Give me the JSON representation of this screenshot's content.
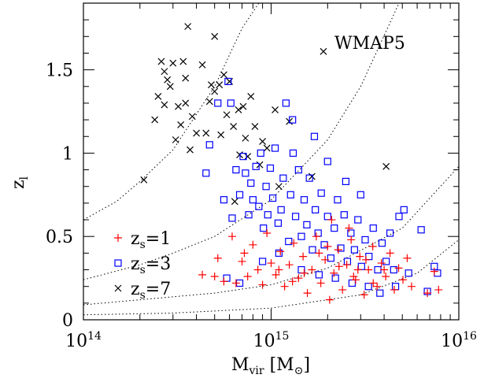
{
  "chart_data": {
    "type": "scatter",
    "panel_label": "WMAP5",
    "x_axis": {
      "label_main": "M",
      "label_sub": "vir",
      "label_unit_open": " [M",
      "label_unit_close": "]",
      "scale": "log",
      "range": [
        100000000000000,
        10000000000000000
      ],
      "ticks": [
        {
          "value": 100000000000000,
          "base": "10",
          "exp": "14"
        },
        {
          "value": 1000000000000000,
          "base": "10",
          "exp": "15"
        },
        {
          "value": 10000000000000000,
          "base": "10",
          "exp": "16"
        }
      ]
    },
    "y_axis": {
      "label_main": "z",
      "label_sub": "l",
      "scale": "linear",
      "range": [
        0,
        1.9
      ],
      "ticks": [
        {
          "value": 0,
          "label": "0"
        },
        {
          "value": 0.5,
          "label": "0.5"
        },
        {
          "value": 1,
          "label": "1"
        },
        {
          "value": 1.5,
          "label": "1.5"
        }
      ]
    },
    "legend": {
      "placement": "bottom-left",
      "entries": [
        {
          "series": "zs1",
          "prefix": "z",
          "sub": "s",
          "suffix": "=1"
        },
        {
          "series": "zs3",
          "prefix": "z",
          "sub": "s",
          "suffix": "=3"
        },
        {
          "series": "zs7",
          "prefix": "z",
          "sub": "s",
          "suffix": "=7"
        }
      ]
    },
    "series": [
      {
        "id": "zs7",
        "marker": "cross",
        "color": "#000000",
        "points": [
          [
            210000000000000.0,
            0.84
          ],
          [
            240000000000000.0,
            1.2
          ],
          [
            250000000000000.0,
            1.34
          ],
          [
            260000000000000.0,
            1.55
          ],
          [
            270000000000000.0,
            1.49
          ],
          [
            280000000000000.0,
            1.44
          ],
          [
            270000000000000.0,
            1.29
          ],
          [
            290000000000000.0,
            1.4
          ],
          [
            300000000000000.0,
            1.54
          ],
          [
            310000000000000.0,
            1.08
          ],
          [
            320000000000000.0,
            1.28
          ],
          [
            330000000000000.0,
            1.17
          ],
          [
            350000000000000.0,
            1.3
          ],
          [
            340000000000000.0,
            1.55
          ],
          [
            360000000000000.0,
            1.76
          ],
          [
            350000000000000.0,
            1.45
          ],
          [
            370000000000000.0,
            1.02
          ],
          [
            380000000000000.0,
            1.22
          ],
          [
            400000000000000.0,
            1.12
          ],
          [
            430000000000000.0,
            1.53
          ],
          [
            450000000000000.0,
            1.12
          ],
          [
            470000000000000.0,
            1.31
          ],
          [
            480000000000000.0,
            1.41
          ],
          [
            500000000000000.0,
            1.7
          ],
          [
            500000000000000.0,
            1.37
          ],
          [
            530000000000000.0,
            1.41
          ],
          [
            540000000000000.0,
            1.11
          ],
          [
            560000000000000.0,
            1.47
          ],
          [
            580000000000000.0,
            1.23
          ],
          [
            600000000000000.0,
            1.43
          ],
          [
            630000000000000.0,
            1.16
          ],
          [
            670000000000000.0,
            1.26
          ],
          [
            680000000000000.0,
            0.99
          ],
          [
            710000000000000.0,
            1.28
          ],
          [
            730000000000000.0,
            1.09
          ],
          [
            780000000000000.0,
            1.34
          ],
          [
            820000000000000.0,
            1.16
          ],
          [
            870000000000000.0,
            0.93
          ],
          [
            900000000000000.0,
            1.07
          ],
          [
            1050000000000000.0,
            1.26
          ],
          [
            1250000000000000.0,
            1.19
          ],
          [
            1900000000000000.0,
            1.61
          ],
          [
            1650000000000000.0,
            0.86
          ],
          [
            4100000000000000.0,
            0.92
          ],
          [
            640000000000000.0,
            0.71
          ],
          [
            950000000000000.0,
            1.03
          ],
          [
            750000000000000.0,
            0.98
          ],
          [
            1100000000000000.0,
            0.8
          ]
        ]
      },
      {
        "id": "zs3",
        "marker": "square",
        "color": "#0000ff",
        "points": [
          [
            450000000000000.0,
            0.88
          ],
          [
            470000000000000.0,
            1.05
          ],
          [
            520000000000000.0,
            1.3
          ],
          [
            560000000000000.0,
            0.72
          ],
          [
            590000000000000.0,
            1.43
          ],
          [
            610000000000000.0,
            1.3
          ],
          [
            620000000000000.0,
            0.61
          ],
          [
            650000000000000.0,
            0.9
          ],
          [
            680000000000000.0,
            0.75
          ],
          [
            710000000000000.0,
            0.98
          ],
          [
            730000000000000.0,
            0.88
          ],
          [
            760000000000000.0,
            0.63
          ],
          [
            780000000000000.0,
            0.82
          ],
          [
            800000000000000.0,
            0.72
          ],
          [
            830000000000000.0,
            0.92
          ],
          [
            860000000000000.0,
            0.68
          ],
          [
            880000000000000.0,
            1.0
          ],
          [
            910000000000000.0,
            0.55
          ],
          [
            940000000000000.0,
            0.8
          ],
          [
            960000000000000.0,
            0.63
          ],
          [
            990000000000000.0,
            0.91
          ],
          [
            1020000000000000.0,
            0.73
          ],
          [
            1050000000000000.0,
            1.03
          ],
          [
            1090000000000000.0,
            0.58
          ],
          [
            1130000000000000.0,
            0.66
          ],
          [
            1160000000000000.0,
            0.85
          ],
          [
            1200000000000000.0,
            1.3
          ],
          [
            1240000000000000.0,
            0.47
          ],
          [
            1270000000000000.0,
            0.75
          ],
          [
            1310000000000000.0,
            1.0
          ],
          [
            1350000000000000.0,
            0.62
          ],
          [
            1400000000000000.0,
            0.9
          ],
          [
            1450000000000000.0,
            0.5
          ],
          [
            1500000000000000.0,
            0.72
          ],
          [
            1550000000000000.0,
            0.57
          ],
          [
            1600000000000000.0,
            0.85
          ],
          [
            1660000000000000.0,
            0.42
          ],
          [
            1720000000000000.0,
            0.66
          ],
          [
            1780000000000000.0,
            0.52
          ],
          [
            1850000000000000.0,
            0.76
          ],
          [
            1920000000000000.0,
            0.45
          ],
          [
            2000000000000000.0,
            0.62
          ],
          [
            2080000000000000.0,
            0.37
          ],
          [
            2170000000000000.0,
            0.55
          ],
          [
            2260000000000000.0,
            0.72
          ],
          [
            2350000000000000.0,
            0.43
          ],
          [
            2450000000000000.0,
            0.63
          ],
          [
            2550000000000000.0,
            0.35
          ],
          [
            2660000000000000.0,
            0.52
          ],
          [
            2780000000000000.0,
            0.42
          ],
          [
            2900000000000000.0,
            0.6
          ],
          [
            3030000000000000.0,
            0.32
          ],
          [
            3170000000000000.0,
            0.48
          ],
          [
            3320000000000000.0,
            0.38
          ],
          [
            3500000000000000.0,
            0.55
          ],
          [
            3700000000000000.0,
            0.3
          ],
          [
            3900000000000000.0,
            0.46
          ],
          [
            4100000000000000.0,
            0.35
          ],
          [
            4300000000000000.0,
            0.52
          ],
          [
            4500000000000000.0,
            0.3
          ],
          [
            4800000000000000.0,
            0.62
          ],
          [
            5100000000000000.0,
            0.66
          ],
          [
            5400000000000000.0,
            0.28
          ],
          [
            6300000000000000.0,
            0.54
          ],
          [
            6800000000000000.0,
            0.17
          ],
          [
            7400000000000000.0,
            0.32
          ],
          [
            7700000000000000.0,
            0.28
          ],
          [
            1450000000000000.0,
            0.3
          ],
          [
            1800000000000000.0,
            0.27
          ],
          [
            2200000000000000.0,
            0.25
          ],
          [
            2700000000000000.0,
            0.22
          ],
          [
            3300000000000000.0,
            0.2
          ],
          [
            3800000000000000.0,
            0.16
          ],
          [
            4600000000000000.0,
            0.2
          ],
          [
            1100000000000000.0,
            0.4
          ],
          [
            900000000000000.0,
            0.35
          ],
          [
            580000000000000.0,
            0.25
          ],
          [
            680000000000000.0,
            0.22
          ],
          [
            2000000000000000.0,
            0.95
          ],
          [
            2500000000000000.0,
            0.83
          ],
          [
            3000000000000000.0,
            0.75
          ],
          [
            1700000000000000.0,
            1.1
          ],
          [
            1300000000000000.0,
            1.2
          ]
        ]
      },
      {
        "id": "zs1",
        "marker": "plus",
        "color": "#ff0000",
        "points": [
          [
            430000000000000.0,
            0.27
          ],
          [
            520000000000000.0,
            0.37
          ],
          [
            560000000000000.0,
            0.23
          ],
          [
            620000000000000.0,
            0.5
          ],
          [
            650000000000000.0,
            0.22
          ],
          [
            700000000000000.0,
            0.35
          ],
          [
            750000000000000.0,
            0.26
          ],
          [
            800000000000000.0,
            0.45
          ],
          [
            850000000000000.0,
            0.3
          ],
          [
            900000000000000.0,
            0.21
          ],
          [
            950000000000000.0,
            0.52
          ],
          [
            1000000000000000.0,
            0.34
          ],
          [
            1060000000000000.0,
            0.27
          ],
          [
            1120000000000000.0,
            0.41
          ],
          [
            1180000000000000.0,
            0.2
          ],
          [
            1250000000000000.0,
            0.33
          ],
          [
            1320000000000000.0,
            0.46
          ],
          [
            1400000000000000.0,
            0.25
          ],
          [
            1480000000000000.0,
            0.38
          ],
          [
            1560000000000000.0,
            0.16
          ],
          [
            1650000000000000.0,
            0.3
          ],
          [
            1740000000000000.0,
            0.5
          ],
          [
            1840000000000000.0,
            0.22
          ],
          [
            1940000000000000.0,
            0.36
          ],
          [
            2050000000000000.0,
            0.12
          ],
          [
            2160000000000000.0,
            0.28
          ],
          [
            2280000000000000.0,
            0.42
          ],
          [
            2400000000000000.0,
            0.18
          ],
          [
            2530000000000000.0,
            0.33
          ],
          [
            2670000000000000.0,
            0.48
          ],
          [
            2820000000000000.0,
            0.24
          ],
          [
            2970000000000000.0,
            0.38
          ],
          [
            3130000000000000.0,
            0.15
          ],
          [
            3300000000000000.0,
            0.3
          ],
          [
            3480000000000000.0,
            0.44
          ],
          [
            3670000000000000.0,
            0.2
          ],
          [
            3870000000000000.0,
            0.34
          ],
          [
            4080000000000000.0,
            0.26
          ],
          [
            4300000000000000.0,
            0.4
          ],
          [
            4530000000000000.0,
            0.18
          ],
          [
            4780000000000000.0,
            0.31
          ],
          [
            5040000000000000.0,
            0.24
          ],
          [
            5310000000000000.0,
            0.37
          ],
          [
            5600000000000000.0,
            0.2
          ],
          [
            6800000000000000.0,
            0.16
          ],
          [
            7800000000000000.0,
            0.18
          ],
          [
            7400000000000000.0,
            0.29
          ],
          [
            2100000000000000.0,
            0.6
          ],
          [
            2600000000000000.0,
            0.55
          ],
          [
            1800000000000000.0,
            0.4
          ],
          [
            1500000000000000.0,
            0.28
          ],
          [
            3500000000000000.0,
            0.22
          ],
          [
            2900000000000000.0,
            0.3
          ],
          [
            2300000000000000.0,
            0.32
          ],
          [
            4000000000000000.0,
            0.3
          ],
          [
            1300000000000000.0,
            0.23
          ],
          [
            1100000000000000.0,
            0.3
          ],
          [
            500000000000000.0,
            0.26
          ],
          [
            720000000000000.0,
            0.4
          ],
          [
            2000000000000000.0,
            0.44
          ],
          [
            2750000000000000.0,
            0.26
          ],
          [
            3200000000000000.0,
            0.36
          ]
        ]
      }
    ],
    "reference_curves": [
      {
        "style": "dotted",
        "points": [
          [
            100000000000000.0,
            0.6
          ],
          [
            150000000000000.0,
            0.71
          ],
          [
            200000000000000.0,
            0.83
          ],
          [
            300000000000000.0,
            1.02
          ],
          [
            500000000000000.0,
            1.4
          ],
          [
            700000000000000.0,
            1.75
          ],
          [
            860000000000000.0,
            1.9
          ]
        ]
      },
      {
        "style": "dotted",
        "points": [
          [
            100000000000000.0,
            0.24
          ],
          [
            200000000000000.0,
            0.33
          ],
          [
            300000000000000.0,
            0.4
          ],
          [
            500000000000000.0,
            0.5
          ],
          [
            1000000000000000.0,
            0.72
          ],
          [
            2000000000000000.0,
            1.08
          ],
          [
            3000000000000000.0,
            1.4
          ],
          [
            4800000000000000.0,
            1.9
          ]
        ]
      },
      {
        "style": "dotted",
        "points": [
          [
            100000000000000.0,
            0.09
          ],
          [
            200000000000000.0,
            0.12
          ],
          [
            500000000000000.0,
            0.16
          ],
          [
            1000000000000000.0,
            0.21
          ],
          [
            2000000000000000.0,
            0.31
          ],
          [
            5000000000000000.0,
            0.55
          ],
          [
            1e+16,
            0.92
          ]
        ]
      },
      {
        "style": "dotted",
        "points": [
          [
            100000000000000.0,
            0.03
          ],
          [
            300000000000000.0,
            0.04
          ],
          [
            1000000000000000.0,
            0.07
          ],
          [
            3000000000000000.0,
            0.15
          ],
          [
            6000000000000000.0,
            0.28
          ],
          [
            1e+16,
            0.48
          ]
        ]
      }
    ]
  }
}
